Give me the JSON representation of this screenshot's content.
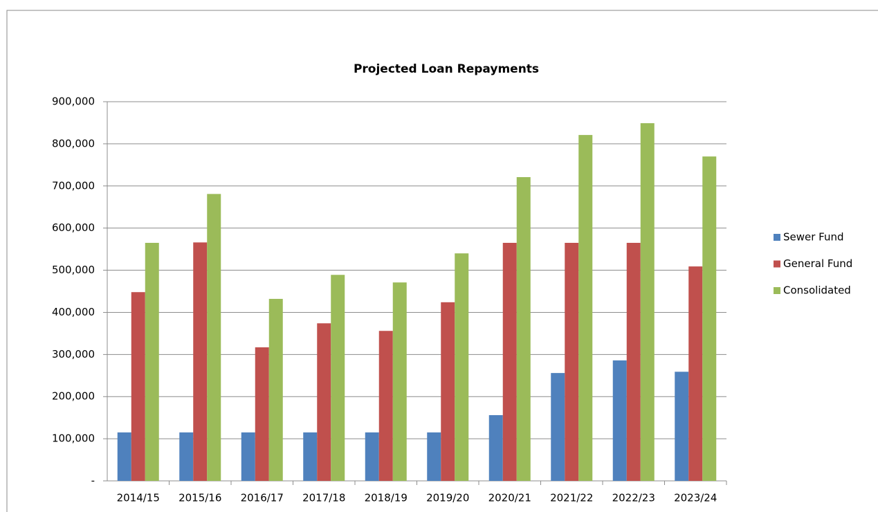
{
  "chart_data": {
    "type": "bar",
    "title": "Projected Loan Repayments",
    "categories": [
      "2014/15",
      "2015/16",
      "2016/17",
      "2017/18",
      "2018/19",
      "2019/20",
      "2020/21",
      "2021/22",
      "2022/23",
      "2023/24"
    ],
    "series": [
      {
        "name": "Sewer Fund",
        "color": "#4f81bd",
        "values": [
          115000,
          115000,
          115000,
          115000,
          115000,
          115000,
          156000,
          256000,
          286000,
          259000
        ]
      },
      {
        "name": "General Fund",
        "color": "#c0504d",
        "values": [
          448000,
          566000,
          317000,
          374000,
          356000,
          424000,
          565000,
          565000,
          565000,
          509000
        ]
      },
      {
        "name": "Consolidated",
        "color": "#9bbb59",
        "values": [
          565000,
          681000,
          432000,
          489000,
          471000,
          540000,
          721000,
          821000,
          849000,
          770000
        ]
      }
    ],
    "ylim": [
      0,
      900000
    ],
    "yticks": [
      {
        "value": 0,
        "label": "-"
      },
      {
        "value": 100000,
        "label": "100,000"
      },
      {
        "value": 200000,
        "label": "200,000"
      },
      {
        "value": 300000,
        "label": "300,000"
      },
      {
        "value": 400000,
        "label": "400,000"
      },
      {
        "value": 500000,
        "label": "500,000"
      },
      {
        "value": 600000,
        "label": "600,000"
      },
      {
        "value": 700000,
        "label": "700,000"
      },
      {
        "value": 800000,
        "label": "800,000"
      },
      {
        "value": 900000,
        "label": "900,000"
      }
    ],
    "grid": true,
    "legend": "right"
  }
}
